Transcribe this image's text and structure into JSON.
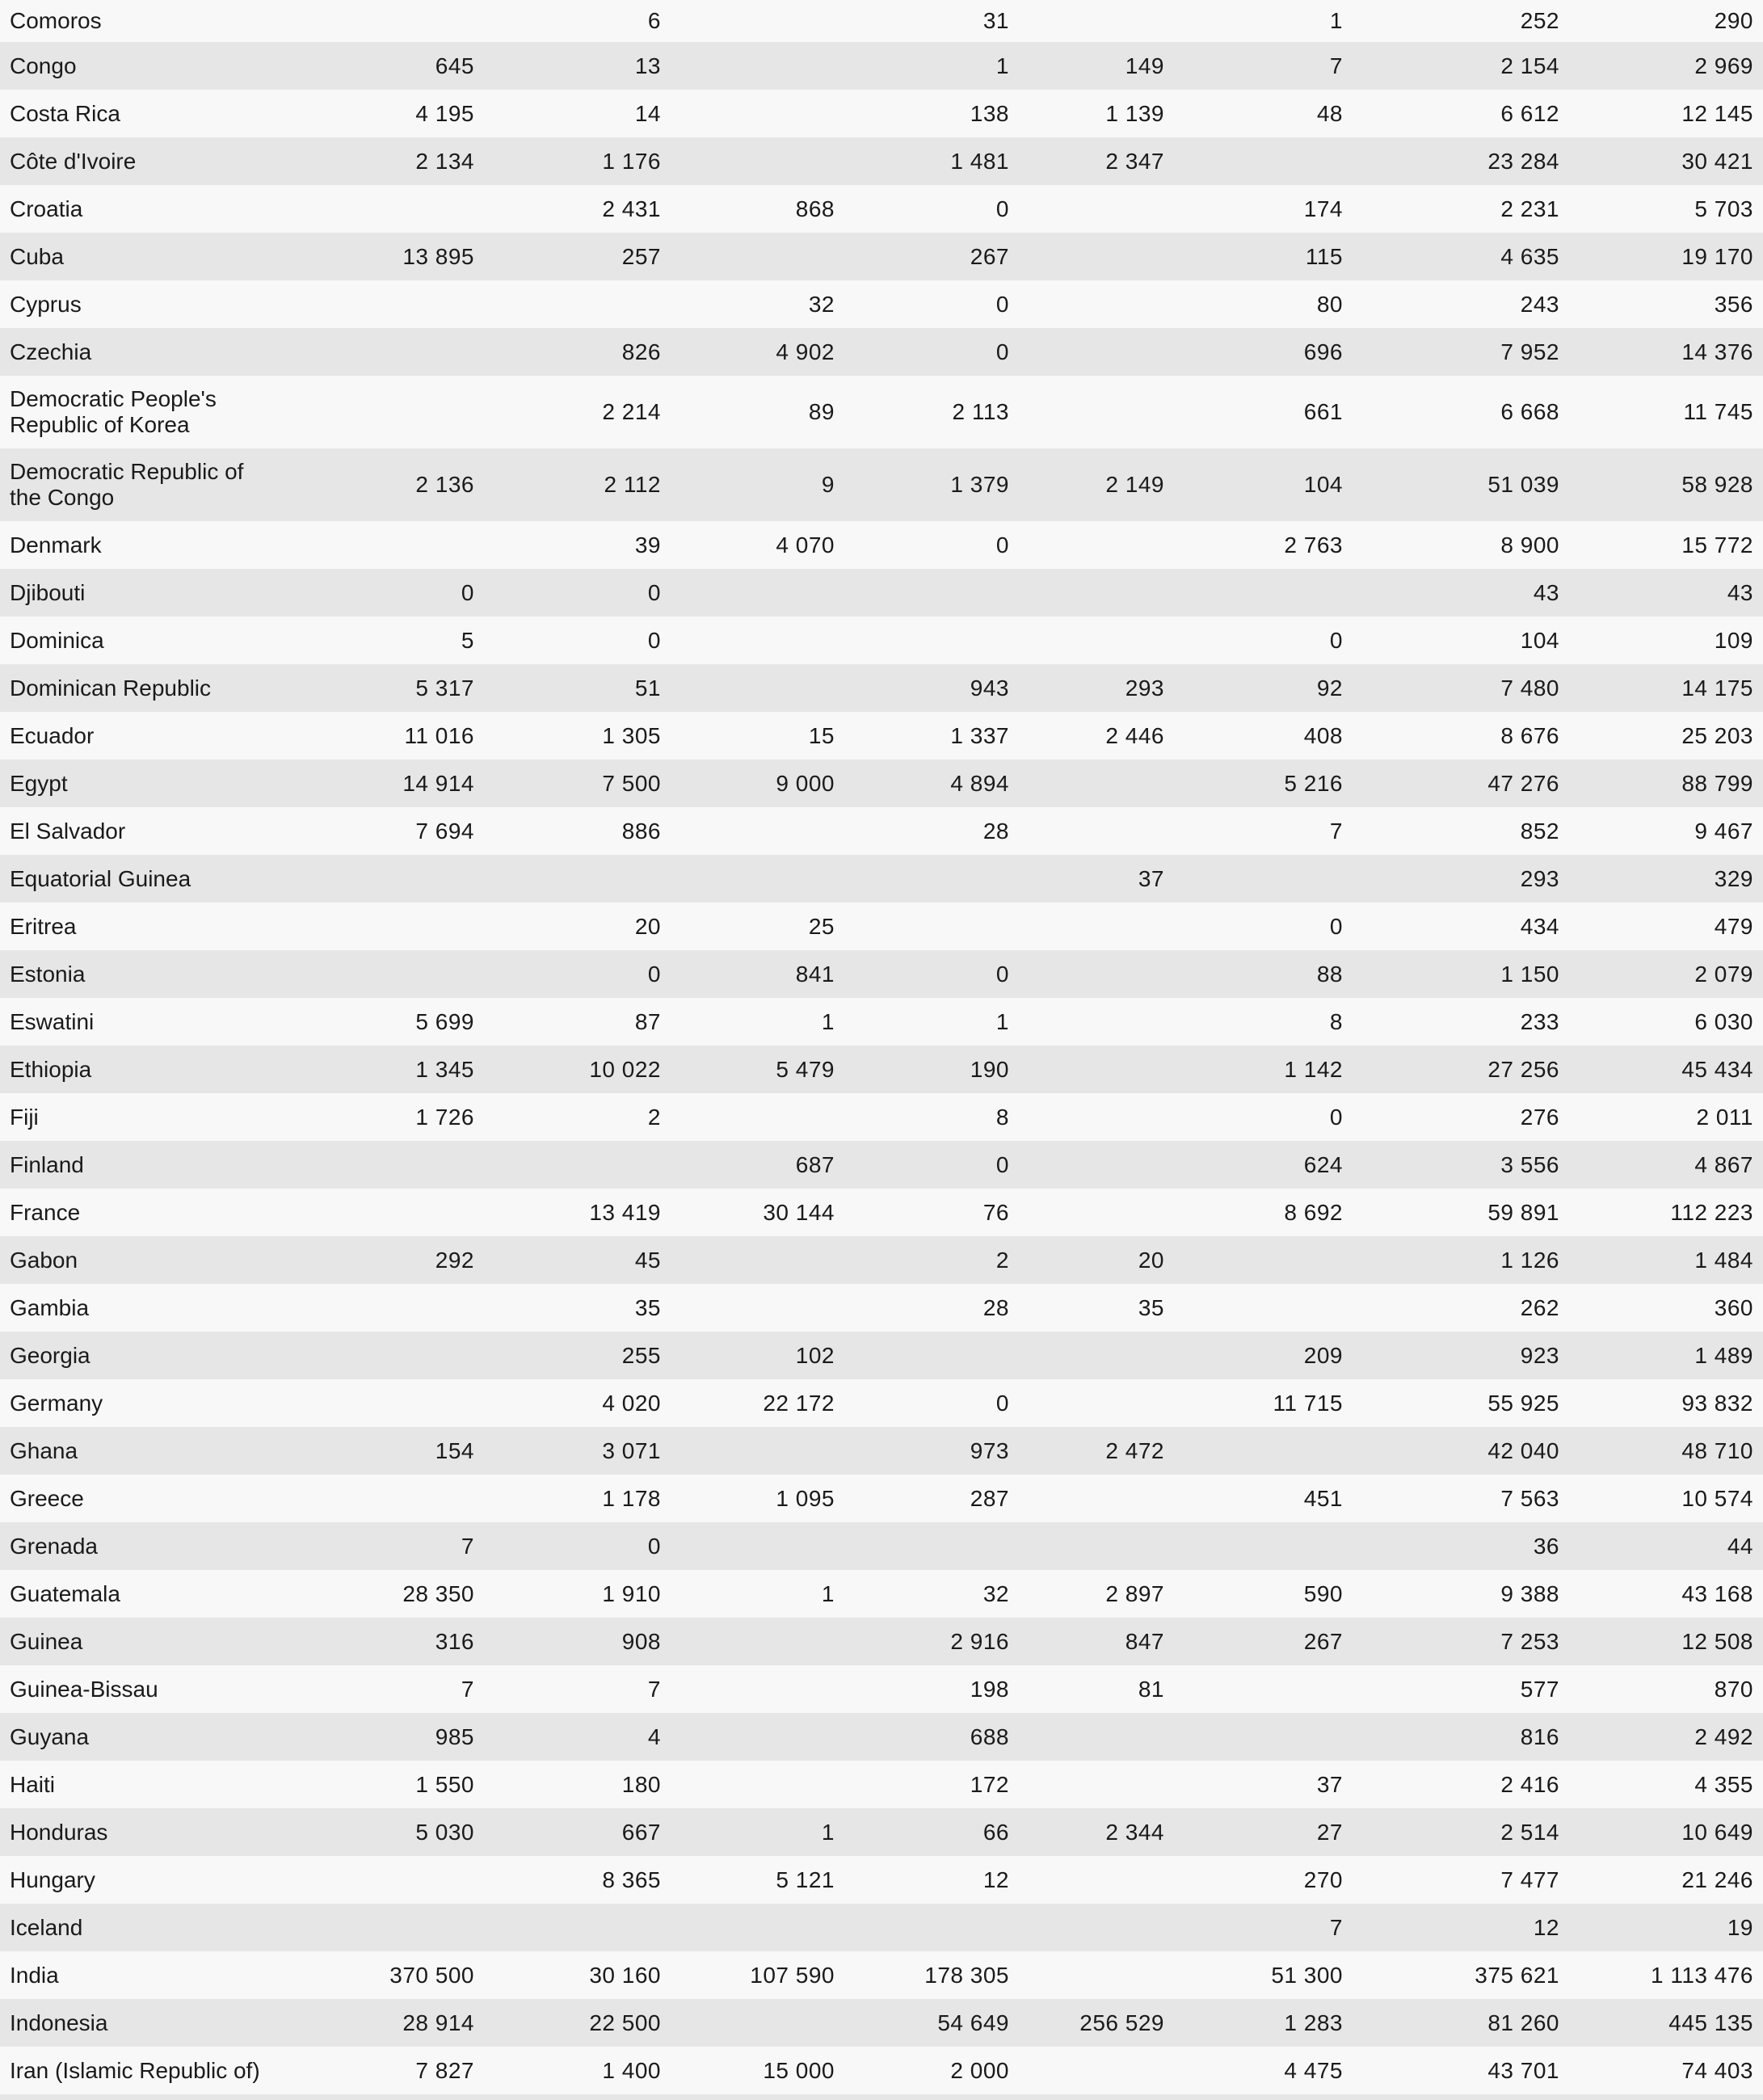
{
  "colors": {
    "row_light": "#f8f8f8",
    "row_dark": "#e6e6e6",
    "text": "#1a1a1a"
  },
  "table": {
    "rows": [
      {
        "name": "Comoros",
        "values": [
          "",
          "6",
          "",
          "31",
          "",
          "1",
          "252",
          "290"
        ]
      },
      {
        "name": "Congo",
        "values": [
          "645",
          "13",
          "",
          "1",
          "149",
          "7",
          "2 154",
          "2 969"
        ]
      },
      {
        "name": "Costa Rica",
        "values": [
          "4 195",
          "14",
          "",
          "138",
          "1 139",
          "48",
          "6 612",
          "12 145"
        ]
      },
      {
        "name": "Côte d'Ivoire",
        "values": [
          "2 134",
          "1 176",
          "",
          "1 481",
          "2 347",
          "",
          "23 284",
          "30 421"
        ]
      },
      {
        "name": "Croatia",
        "values": [
          "",
          "2 431",
          "868",
          "0",
          "",
          "174",
          "2 231",
          "5 703"
        ]
      },
      {
        "name": "Cuba",
        "values": [
          "13 895",
          "257",
          "",
          "267",
          "",
          "115",
          "4 635",
          "19 170"
        ]
      },
      {
        "name": "Cyprus",
        "values": [
          "",
          "",
          "32",
          "0",
          "",
          "80",
          "243",
          "356"
        ]
      },
      {
        "name": "Czechia",
        "values": [
          "",
          "826",
          "4 902",
          "0",
          "",
          "696",
          "7 952",
          "14 376"
        ]
      },
      {
        "name": "Democratic People's Republic of Korea",
        "values": [
          "",
          "2 214",
          "89",
          "2 113",
          "",
          "661",
          "6 668",
          "11 745"
        ]
      },
      {
        "name": "Democratic Republic of the Congo",
        "values": [
          "2 136",
          "2 112",
          "9",
          "1 379",
          "2 149",
          "104",
          "51 039",
          "58 928"
        ]
      },
      {
        "name": "Denmark",
        "values": [
          "",
          "39",
          "4 070",
          "0",
          "",
          "2 763",
          "8 900",
          "15 772"
        ]
      },
      {
        "name": "Djibouti",
        "values": [
          "0",
          "0",
          "",
          "",
          "",
          "",
          "43",
          "43"
        ]
      },
      {
        "name": "Dominica",
        "values": [
          "5",
          "0",
          "",
          "",
          "",
          "0",
          "104",
          "109"
        ]
      },
      {
        "name": "Dominican Republic",
        "values": [
          "5 317",
          "51",
          "",
          "943",
          "293",
          "92",
          "7 480",
          "14 175"
        ]
      },
      {
        "name": "Ecuador",
        "values": [
          "11 016",
          "1 305",
          "15",
          "1 337",
          "2 446",
          "408",
          "8 676",
          "25 203"
        ]
      },
      {
        "name": "Egypt",
        "values": [
          "14 914",
          "7 500",
          "9 000",
          "4 894",
          "",
          "5 216",
          "47 276",
          "88 799"
        ]
      },
      {
        "name": "El Salvador",
        "values": [
          "7 694",
          "886",
          "",
          "28",
          "",
          "7",
          "852",
          "9 467"
        ]
      },
      {
        "name": "Equatorial Guinea",
        "values": [
          "",
          "",
          "",
          "",
          "37",
          "",
          "293",
          "329"
        ]
      },
      {
        "name": "Eritrea",
        "values": [
          "",
          "20",
          "25",
          "",
          "",
          "0",
          "434",
          "479"
        ]
      },
      {
        "name": "Estonia",
        "values": [
          "",
          "0",
          "841",
          "0",
          "",
          "88",
          "1 150",
          "2 079"
        ]
      },
      {
        "name": "Eswatini",
        "values": [
          "5 699",
          "87",
          "1",
          "1",
          "",
          "8",
          "233",
          "6 030"
        ]
      },
      {
        "name": "Ethiopia",
        "values": [
          "1 345",
          "10 022",
          "5 479",
          "190",
          "",
          "1 142",
          "27 256",
          "45 434"
        ]
      },
      {
        "name": "Fiji",
        "values": [
          "1 726",
          "2",
          "",
          "8",
          "",
          "0",
          "276",
          "2 011"
        ]
      },
      {
        "name": "Finland",
        "values": [
          "",
          "",
          "687",
          "0",
          "",
          "624",
          "3 556",
          "4 867"
        ]
      },
      {
        "name": "France",
        "values": [
          "",
          "13 419",
          "30 144",
          "76",
          "",
          "8 692",
          "59 891",
          "112 223"
        ]
      },
      {
        "name": "Gabon",
        "values": [
          "292",
          "45",
          "",
          "2",
          "20",
          "",
          "1 126",
          "1 484"
        ]
      },
      {
        "name": "Gambia",
        "values": [
          "",
          "35",
          "",
          "28",
          "35",
          "",
          "262",
          "360"
        ]
      },
      {
        "name": "Georgia",
        "values": [
          "",
          "255",
          "102",
          "",
          "",
          "209",
          "923",
          "1 489"
        ]
      },
      {
        "name": "Germany",
        "values": [
          "",
          "4 020",
          "22 172",
          "0",
          "",
          "11 715",
          "55 925",
          "93 832"
        ]
      },
      {
        "name": "Ghana",
        "values": [
          "154",
          "3 071",
          "",
          "973",
          "2 472",
          "",
          "42 040",
          "48 710"
        ]
      },
      {
        "name": "Greece",
        "values": [
          "",
          "1 178",
          "1 095",
          "287",
          "",
          "451",
          "7 563",
          "10 574"
        ]
      },
      {
        "name": "Grenada",
        "values": [
          "7",
          "0",
          "",
          "",
          "",
          "",
          "36",
          "44"
        ]
      },
      {
        "name": "Guatemala",
        "values": [
          "28 350",
          "1 910",
          "1",
          "32",
          "2 897",
          "590",
          "9 388",
          "43 168"
        ]
      },
      {
        "name": "Guinea",
        "values": [
          "316",
          "908",
          "",
          "2 916",
          "847",
          "267",
          "7 253",
          "12 508"
        ]
      },
      {
        "name": "Guinea-Bissau",
        "values": [
          "7",
          "7",
          "",
          "198",
          "81",
          "",
          "577",
          "870"
        ]
      },
      {
        "name": "Guyana",
        "values": [
          "985",
          "4",
          "",
          "688",
          "",
          "",
          "816",
          "2 492"
        ]
      },
      {
        "name": "Haiti",
        "values": [
          "1 550",
          "180",
          "",
          "172",
          "",
          "37",
          "2 416",
          "4 355"
        ]
      },
      {
        "name": "Honduras",
        "values": [
          "5 030",
          "667",
          "1",
          "66",
          "2 344",
          "27",
          "2 514",
          "10 649"
        ]
      },
      {
        "name": "Hungary",
        "values": [
          "",
          "8 365",
          "5 121",
          "12",
          "",
          "270",
          "7 477",
          "21 246"
        ]
      },
      {
        "name": "Iceland",
        "values": [
          "",
          "",
          "",
          "",
          "",
          "7",
          "12",
          "19"
        ]
      },
      {
        "name": "India",
        "values": [
          "370 500",
          "30 160",
          "107 590",
          "178 305",
          "",
          "51 300",
          "375 621",
          "1 113 476"
        ]
      },
      {
        "name": "Indonesia",
        "values": [
          "28 914",
          "22 500",
          "",
          "54 649",
          "256 529",
          "1 283",
          "81 260",
          "445 135"
        ]
      },
      {
        "name": "Iran (Islamic Republic of)",
        "values": [
          "7 827",
          "1 400",
          "15 000",
          "2 000",
          "",
          "4 475",
          "43 701",
          "74 403"
        ]
      }
    ]
  }
}
